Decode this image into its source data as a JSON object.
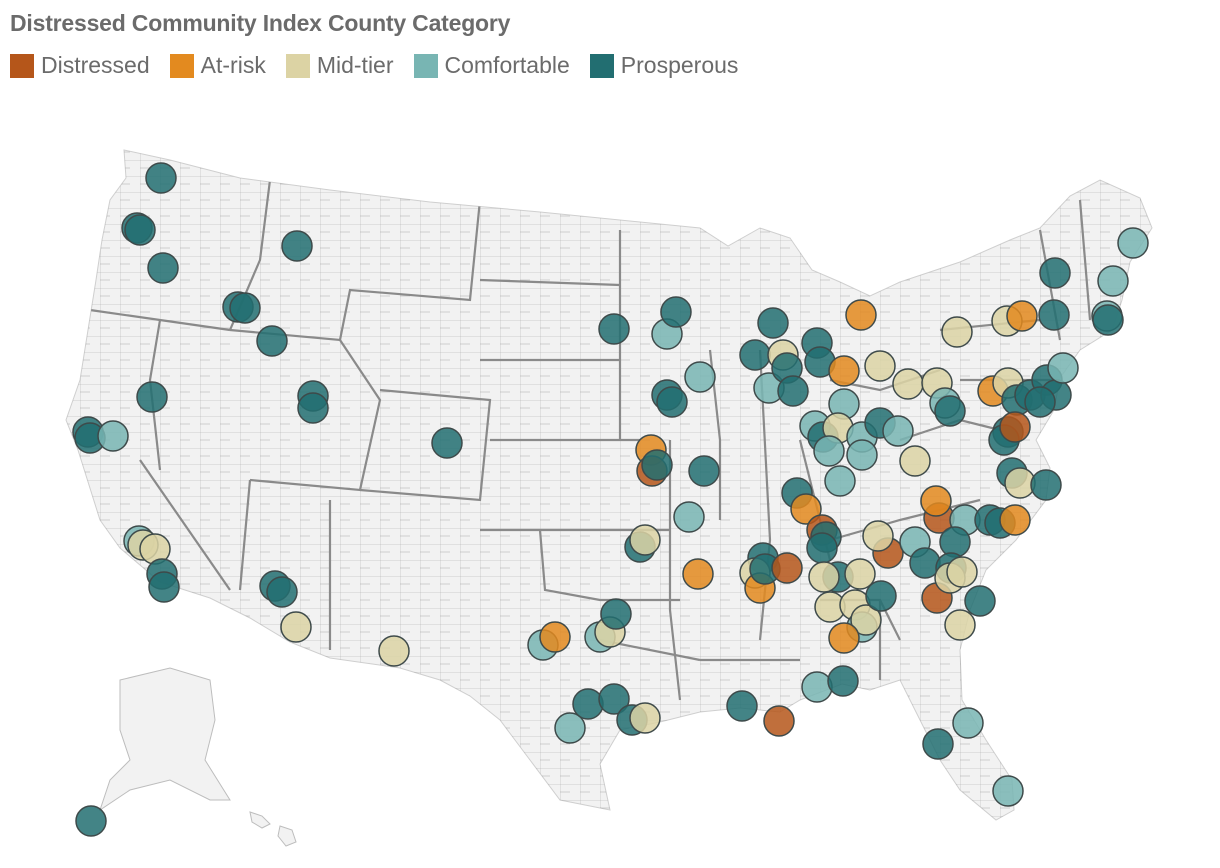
{
  "title": "Distressed Community Index County Category",
  "legend": [
    {
      "label": "Distressed",
      "color": "#B5561A"
    },
    {
      "label": "At-risk",
      "color": "#E38A1F"
    },
    {
      "label": "Mid-tier",
      "color": "#DCD3A4"
    },
    {
      "label": "Comfortable",
      "color": "#78B5B3"
    },
    {
      "label": "Prosperous",
      "color": "#226E71"
    }
  ],
  "map_style": {
    "land": "#f2f2f2",
    "county_lines": "#5a5a5a",
    "state_lines": "#8a8a8a",
    "marker_stroke": "#3e4a4a"
  }
}
